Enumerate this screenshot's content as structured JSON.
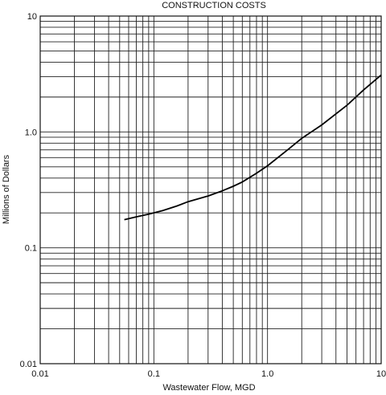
{
  "chart_data": {
    "type": "line",
    "title": "CONSTRUCTION COSTS",
    "xlabel": "Wastewater Flow, MGD",
    "ylabel": "Millions of Dollars",
    "x_scale": "log",
    "y_scale": "log",
    "xlim": [
      0.01,
      10
    ],
    "ylim": [
      0.01,
      10
    ],
    "grid": true,
    "x_ticks": [
      {
        "value": 0.01,
        "label": "0.01"
      },
      {
        "value": 0.1,
        "label": "0.1"
      },
      {
        "value": 1,
        "label": "1.0"
      },
      {
        "value": 10,
        "label": "10"
      }
    ],
    "y_ticks": [
      {
        "value": 0.01,
        "label": "0.01"
      },
      {
        "value": 0.1,
        "label": "0.1"
      },
      {
        "value": 1,
        "label": "1.0"
      },
      {
        "value": 10,
        "label": "10"
      }
    ],
    "series": [
      {
        "x": [
          0.055,
          0.07,
          0.09,
          0.12,
          0.16,
          0.2,
          0.3,
          0.4,
          0.5,
          0.6,
          0.8,
          1.0,
          1.5,
          2.0,
          3.0,
          5.0,
          7.0,
          10.0
        ],
        "y": [
          0.175,
          0.185,
          0.195,
          0.21,
          0.23,
          0.25,
          0.28,
          0.31,
          0.34,
          0.37,
          0.44,
          0.51,
          0.7,
          0.88,
          1.15,
          1.7,
          2.3,
          3.1
        ]
      }
    ],
    "colors": {
      "line": "#000000",
      "grid": "#222222"
    }
  }
}
